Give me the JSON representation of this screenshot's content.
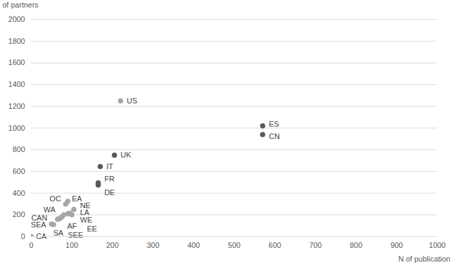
{
  "chart_data": {
    "type": "scatter",
    "x_label": "N of publication",
    "y_label": "of partners",
    "labels": [
      "US",
      "ES",
      "CN",
      "UK",
      "IT",
      "FR",
      "DE",
      "EA",
      "OC",
      "NE",
      "WA",
      "LA",
      "WE",
      "EE",
      "CAN",
      "SEA",
      "AF",
      "SA",
      "SEE",
      "CA"
    ],
    "x": [
      220,
      570,
      570,
      205,
      170,
      165,
      165,
      90,
      85,
      105,
      80,
      95,
      90,
      100,
      75,
      50,
      70,
      55,
      65,
      0
    ],
    "y": [
      1250,
      1020,
      940,
      750,
      645,
      495,
      475,
      325,
      300,
      250,
      200,
      215,
      210,
      200,
      180,
      115,
      165,
      110,
      160,
      0
    ],
    "colors": [
      "#a6a6a6",
      "#595959",
      "#595959",
      "#595959",
      "#595959",
      "#595959",
      "#595959",
      "#a6a6a6",
      "#a6a6a6",
      "#a6a6a6",
      "#a6a6a6",
      "#a6a6a6",
      "#a6a6a6",
      "#a6a6a6",
      "#a6a6a6",
      "#a6a6a6",
      "#a6a6a6",
      "#a6a6a6",
      "#a6a6a6",
      "#a6a6a6"
    ],
    "xlim": [
      0,
      1000
    ],
    "xticks": [
      0,
      100,
      200,
      300,
      400,
      500,
      600,
      700,
      800,
      900,
      1000
    ],
    "ylim": [
      0,
      2000
    ],
    "yticks": [
      0,
      200,
      400,
      600,
      800,
      1000,
      1200,
      1400,
      1600,
      1800,
      2000
    ],
    "grid": true,
    "marker": "circle"
  }
}
